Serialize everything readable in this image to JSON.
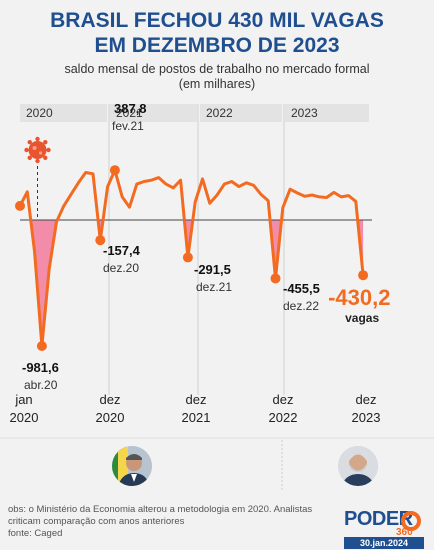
{
  "title_line1": "BRASIL FECHOU 430 MIL VAGAS",
  "title_line2": "EM DEZEMBRO DE 2023",
  "subtitle_line1": "saldo mensal de postos de trabalho no mercado formal",
  "subtitle_line2": "(em milhares)",
  "notes": {
    "obs": "obs: o Ministério da Economia alterou a metodologia em 2020. Analistas criticam comparação com anos anteriores",
    "source": "fonte: Caged"
  },
  "logo": {
    "word": "PODER",
    "number": "360",
    "date": "30.jan.2024"
  },
  "icons": {
    "virus": "coronavirus-icon",
    "left_person": "bolsonaro-photo",
    "right_person": "lula-photo"
  },
  "colors": {
    "line": "#f26b21",
    "negative_fill": "#f27a9c",
    "title": "#1f4f8f",
    "year_band": "#e3e3e3"
  },
  "chart_data": {
    "type": "line",
    "unit": "thousands",
    "year_labels": [
      "2020",
      "2021",
      "2022",
      "2023"
    ],
    "x_ticks": [
      {
        "month": 1,
        "top": "jan",
        "bottom": "2020"
      },
      {
        "month": 12,
        "top": "dez",
        "bottom": "2020"
      },
      {
        "month": 24,
        "top": "dez",
        "bottom": "2021"
      },
      {
        "month": 36,
        "top": "dez",
        "bottom": "2022"
      },
      {
        "month": 48,
        "top": "dez",
        "bottom": "2023"
      }
    ],
    "ylim": [
      -1000,
      450
    ],
    "zero_line": true,
    "values": [
      110,
      220,
      -250,
      -981.6,
      -380,
      -15,
      110,
      200,
      290,
      370,
      360,
      -157.4,
      260,
      387.8,
      180,
      100,
      280,
      300,
      310,
      330,
      280,
      250,
      310,
      -291.5,
      140,
      320,
      130,
      195,
      280,
      300,
      260,
      290,
      270,
      200,
      150,
      -455.5,
      95,
      240,
      210,
      185,
      195,
      180,
      175,
      215,
      180,
      190,
      145,
      -430.2
    ],
    "annotations": [
      {
        "month": 4,
        "value": "-981,6",
        "date": "abr.20",
        "side": "below"
      },
      {
        "month": 12,
        "value": "-157,4",
        "date": "dez.20",
        "side": "right"
      },
      {
        "month": 14,
        "value": "387,8",
        "date": "fev.21",
        "side": "above"
      },
      {
        "month": 24,
        "value": "-291,5",
        "date": "dez.21",
        "side": "below"
      },
      {
        "month": 36,
        "value": "-455,5",
        "date": "dez.22",
        "side": "right"
      },
      {
        "month": 48,
        "value": "-430,2",
        "date": "vagas",
        "side": "highlight"
      }
    ]
  }
}
